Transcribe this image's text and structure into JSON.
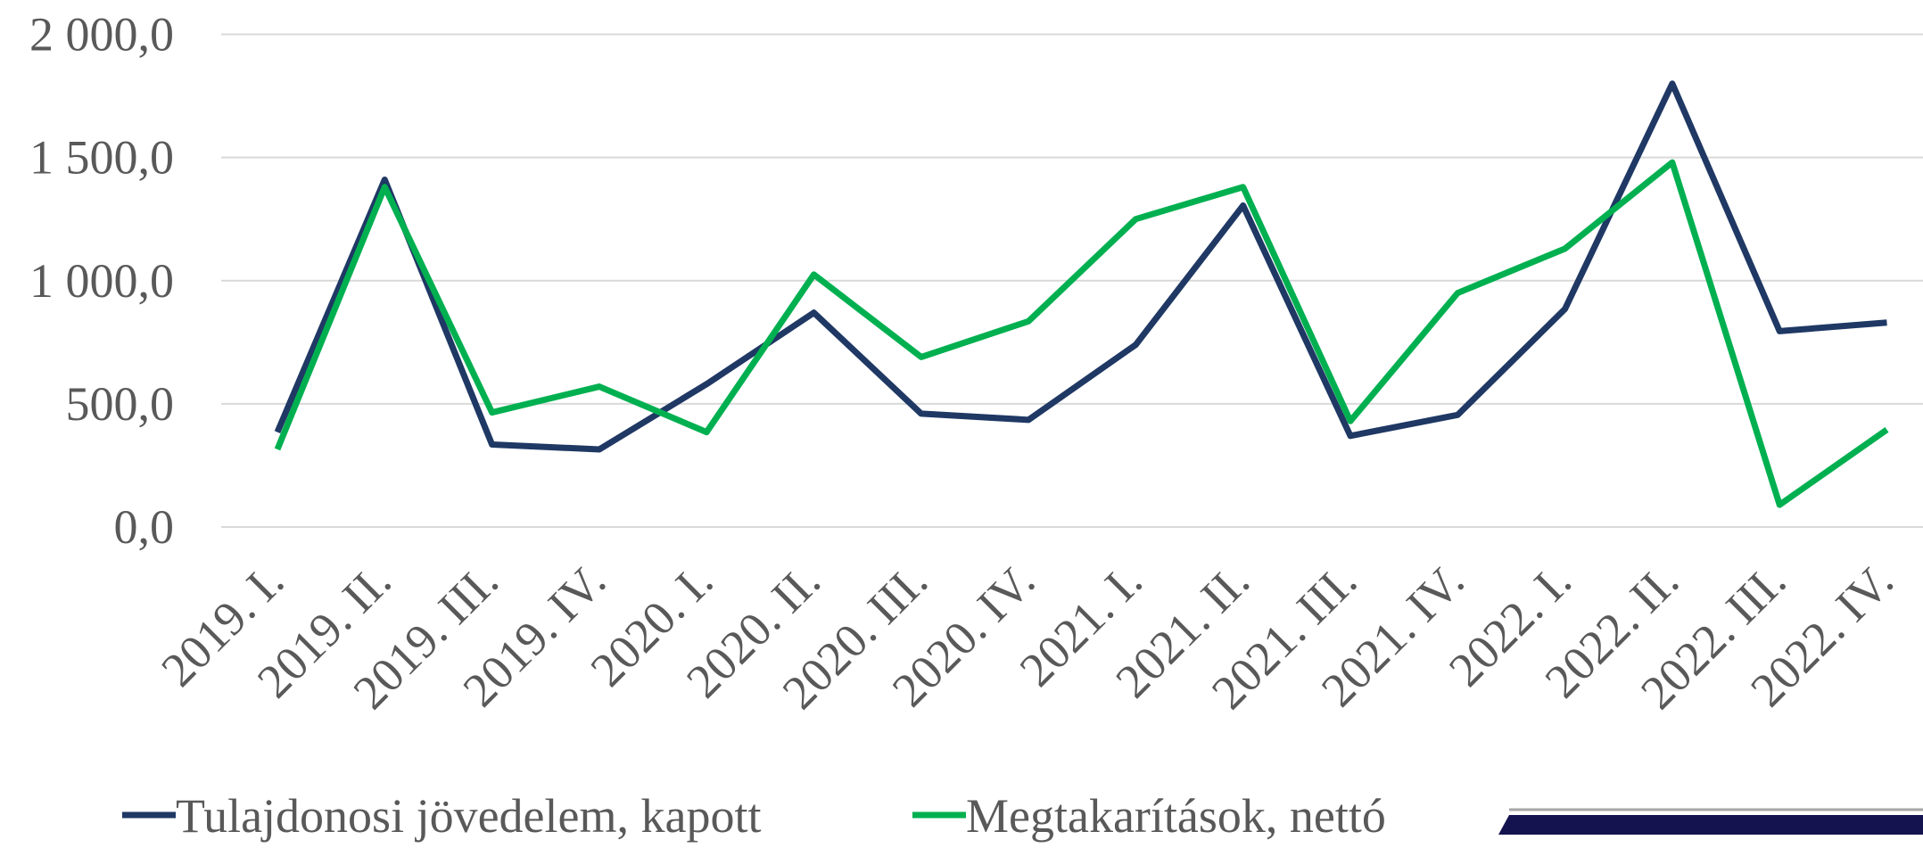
{
  "chart_data": {
    "type": "line",
    "categories": [
      "2019. I.",
      "2019. II.",
      "2019. III.",
      "2019. IV.",
      "2020. I.",
      "2020. II.",
      "2020. III.",
      "2020. IV.",
      "2021. I.",
      "2021. II.",
      "2021. III.",
      "2021. IV.",
      "2022. I.",
      "2022. II.",
      "2022. III.",
      "2022. IV."
    ],
    "series": [
      {
        "name": "Tulajdonosi jövedelem, kapott",
        "color": "#1f3864",
        "values": [
          385,
          1410,
          335,
          315,
          580,
          870,
          460,
          435,
          740,
          1305,
          370,
          455,
          885,
          1800,
          795,
          830
        ]
      },
      {
        "name": "Megtakarítások, nettó",
        "color": "#00b050",
        "values": [
          315,
          1380,
          465,
          570,
          385,
          1025,
          690,
          835,
          1250,
          1380,
          430,
          950,
          1130,
          1480,
          90,
          395
        ]
      }
    ],
    "ylim": [
      0,
      2000
    ],
    "yticks": [
      {
        "value": 0,
        "label": "0,0"
      },
      {
        "value": 500,
        "label": "500,0"
      },
      {
        "value": 1000,
        "label": "1 000,0"
      },
      {
        "value": 1500,
        "label": "1 500,0"
      },
      {
        "value": 2000,
        "label": "2 000,0"
      }
    ],
    "grid": true,
    "legend": "bottom"
  }
}
